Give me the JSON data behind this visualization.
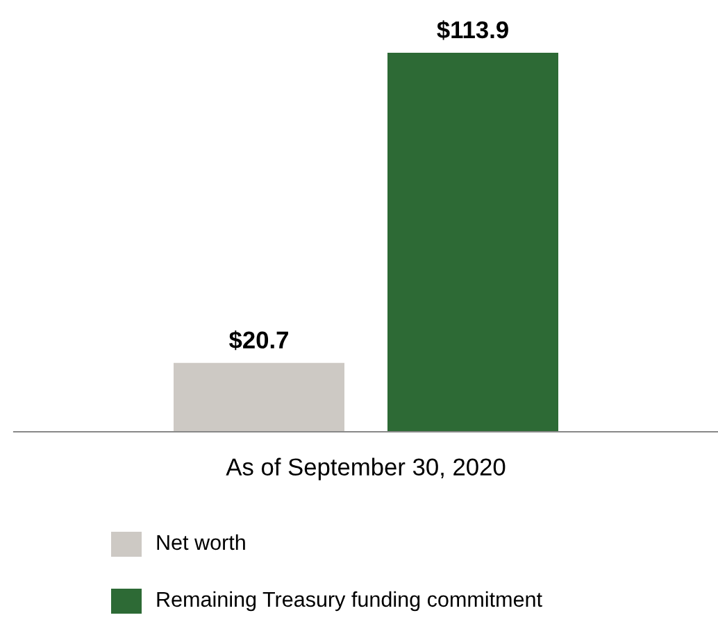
{
  "chart_data": {
    "type": "bar",
    "categories": [
      null,
      null
    ],
    "xlabel": "As of September 30, 2020",
    "series": [
      {
        "colors": [
          "#cdc9c4",
          "#2d6a35"
        ],
        "values": [
          20.7,
          113.9
        ],
        "value_labels": [
          "$20.7",
          "$113.9"
        ]
      }
    ],
    "annotations": [
      "Net worth",
      "Remaining Treasury funding commitment"
    ],
    "grid": false
  }
}
